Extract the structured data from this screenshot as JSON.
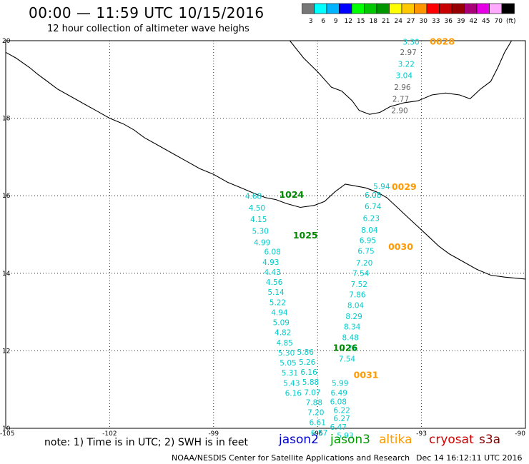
{
  "header": {
    "title": "00:00 — 11:59 UTC 10/15/2016",
    "subtitle": "12 hour collection of altimeter wave heighs"
  },
  "colorbar": {
    "colors": [
      "#777777",
      "#00ffff",
      "#00b4ff",
      "#0000ff",
      "#00ff00",
      "#00c800",
      "#009600",
      "#ffff00",
      "#ffc800",
      "#ff9600",
      "#ff0000",
      "#c80000",
      "#960000",
      "#aa0078",
      "#e600e6",
      "#ffaaff",
      "#000000"
    ],
    "labels": [
      "3",
      "6",
      "9",
      "12",
      "15",
      "18",
      "21",
      "24",
      "27",
      "30",
      "33",
      "36",
      "39",
      "42",
      "45",
      "70",
      "(ft)"
    ]
  },
  "axes": {
    "x_ticks": [
      "-105",
      "-102",
      "-99",
      "-96",
      "-93",
      "-90"
    ],
    "y_ticks": [
      "20",
      "18",
      "16",
      "14",
      "12",
      "10"
    ]
  },
  "passes": [
    {
      "time": "0028",
      "satellite": "altika",
      "color": "#ff9900",
      "points": [
        {
          "lat": 19.9,
          "lon": -93.3,
          "swh": "3.30",
          "color": "#00cccc"
        },
        {
          "lat": 19.63,
          "lon": -93.38,
          "swh": "2.97",
          "color": "#666666"
        },
        {
          "lat": 19.33,
          "lon": -93.44,
          "swh": "3.22",
          "color": "#00cccc"
        },
        {
          "lat": 19.03,
          "lon": -93.5,
          "swh": "3.04",
          "color": "#00cccc"
        },
        {
          "lat": 18.73,
          "lon": -93.55,
          "swh": "2.96",
          "color": "#666666"
        },
        {
          "lat": 18.43,
          "lon": -93.6,
          "swh": "2.77",
          "color": "#666666"
        },
        {
          "lat": 18.13,
          "lon": -93.63,
          "swh": "2.90",
          "color": "#666666"
        }
      ]
    },
    {
      "time": "0029",
      "satellite": "altika",
      "color": "#ff9900",
      "points": [
        {
          "lat": 16.17,
          "lon": -94.15,
          "swh": "5.94",
          "color": "#00cccc"
        },
        {
          "lat": 15.95,
          "lon": -94.4,
          "swh": "6.08",
          "color": "#00cccc"
        },
        {
          "lat": 15.65,
          "lon": -94.4,
          "swh": "6.74",
          "color": "#00cccc"
        },
        {
          "lat": 15.35,
          "lon": -94.45,
          "swh": "6.23",
          "color": "#00cccc"
        }
      ]
    },
    {
      "time": "0030",
      "satellite": "altika",
      "color": "#ff9900",
      "points": [
        {
          "lat": 15.05,
          "lon": -94.5,
          "swh": "8.04",
          "color": "#00cccc"
        },
        {
          "lat": 14.78,
          "lon": -94.55,
          "swh": "6.95",
          "color": "#00cccc"
        },
        {
          "lat": 14.5,
          "lon": -94.6,
          "swh": "6.75",
          "color": "#00cccc"
        },
        {
          "lat": 14.2,
          "lon": -94.65,
          "swh": "7.20",
          "color": "#00cccc"
        },
        {
          "lat": 13.93,
          "lon": -94.75,
          "swh": "7.54",
          "color": "#00cccc"
        },
        {
          "lat": 13.65,
          "lon": -94.8,
          "swh": "7.52",
          "color": "#00cccc"
        },
        {
          "lat": 13.38,
          "lon": -94.85,
          "swh": "7.86",
          "color": "#00cccc"
        },
        {
          "lat": 13.1,
          "lon": -94.9,
          "swh": "8.04",
          "color": "#00cccc"
        },
        {
          "lat": 12.82,
          "lon": -94.95,
          "swh": "8.29",
          "color": "#00cccc"
        },
        {
          "lat": 12.55,
          "lon": -95.0,
          "swh": "8.34",
          "color": "#00cccc"
        },
        {
          "lat": 12.27,
          "lon": -95.05,
          "swh": "8.48",
          "color": "#00cccc"
        },
        {
          "lat": 12.0,
          "lon": -95.1,
          "swh": "7.71",
          "color": "#00cccc"
        },
        {
          "lat": 11.72,
          "lon": -95.15,
          "swh": "7.54",
          "color": "#00cccc"
        }
      ]
    },
    {
      "time": "0031",
      "satellite": "altika",
      "color": "#ff9900",
      "points": [
        {
          "lat": 11.1,
          "lon": -95.35,
          "swh": "5.99",
          "color": "#00cccc"
        },
        {
          "lat": 10.85,
          "lon": -95.38,
          "swh": "6.49",
          "color": "#00cccc"
        },
        {
          "lat": 10.62,
          "lon": -95.4,
          "swh": "6.08",
          "color": "#00cccc"
        },
        {
          "lat": 10.4,
          "lon": -95.3,
          "swh": "6.22",
          "color": "#00cccc"
        },
        {
          "lat": 10.18,
          "lon": -95.3,
          "swh": "6.27",
          "color": "#00cccc"
        },
        {
          "lat": 9.96,
          "lon": -95.4,
          "swh": "6.47",
          "color": "#00cccc"
        },
        {
          "lat": 9.74,
          "lon": -95.2,
          "swh": "5.93",
          "color": "#00cccc"
        }
      ]
    },
    {
      "time": "1024",
      "satellite": "jason3",
      "color": "#008800",
      "points": [
        {
          "lat": 15.92,
          "lon": -97.85,
          "swh": "4.68",
          "color": "#00cccc"
        },
        {
          "lat": 15.62,
          "lon": -97.75,
          "swh": "4.50",
          "color": "#00cccc"
        },
        {
          "lat": 15.32,
          "lon": -97.7,
          "swh": "4.15",
          "color": "#00cccc"
        },
        {
          "lat": 15.02,
          "lon": -97.65,
          "swh": "5.30",
          "color": "#00cccc"
        },
        {
          "lat": 14.72,
          "lon": -97.6,
          "swh": "4.99",
          "color": "#00cccc"
        }
      ]
    },
    {
      "time": "1025",
      "satellite": "jason3",
      "color": "#008800",
      "points": [
        {
          "lat": 14.48,
          "lon": -97.3,
          "swh": "6.08",
          "color": "#00cccc"
        },
        {
          "lat": 14.22,
          "lon": -97.35,
          "swh": "4.93",
          "color": "#00cccc"
        },
        {
          "lat": 13.96,
          "lon": -97.3,
          "swh": "4.43",
          "color": "#00cccc"
        },
        {
          "lat": 13.7,
          "lon": -97.25,
          "swh": "4.56",
          "color": "#00cccc"
        },
        {
          "lat": 13.44,
          "lon": -97.2,
          "swh": "5.14",
          "color": "#00cccc"
        },
        {
          "lat": 13.18,
          "lon": -97.15,
          "swh": "5.22",
          "color": "#00cccc"
        },
        {
          "lat": 12.92,
          "lon": -97.1,
          "swh": "4.94",
          "color": "#00cccc"
        },
        {
          "lat": 12.66,
          "lon": -97.05,
          "swh": "5.09",
          "color": "#00cccc"
        },
        {
          "lat": 12.4,
          "lon": -97.0,
          "swh": "4.82",
          "color": "#00cccc"
        },
        {
          "lat": 12.14,
          "lon": -96.95,
          "swh": "4.85",
          "color": "#00cccc"
        },
        {
          "lat": 11.88,
          "lon": -96.9,
          "swh": "5.30",
          "color": "#00cccc"
        },
        {
          "lat": 11.62,
          "lon": -96.85,
          "swh": "5.05",
          "color": "#00cccc"
        },
        {
          "lat": 11.36,
          "lon": -96.8,
          "swh": "5.31",
          "color": "#00cccc"
        },
        {
          "lat": 11.1,
          "lon": -96.75,
          "swh": "5.43",
          "color": "#00cccc"
        },
        {
          "lat": 10.84,
          "lon": -96.7,
          "swh": "6.16",
          "color": "#00cccc"
        }
      ]
    },
    {
      "time": "1026",
      "satellite": "jason3",
      "color": "#008800",
      "points": [
        {
          "lat": 11.9,
          "lon": -96.35,
          "swh": "5.86",
          "color": "#00cccc"
        },
        {
          "lat": 11.64,
          "lon": -96.3,
          "swh": "5.26",
          "color": "#00cccc"
        },
        {
          "lat": 11.38,
          "lon": -96.25,
          "swh": "6.16",
          "color": "#00cccc"
        },
        {
          "lat": 11.12,
          "lon": -96.2,
          "swh": "5.88",
          "color": "#00cccc"
        },
        {
          "lat": 10.86,
          "lon": -96.15,
          "swh": "7.07",
          "color": "#00cccc"
        },
        {
          "lat": 10.6,
          "lon": -96.1,
          "swh": "7.88",
          "color": "#00cccc"
        },
        {
          "lat": 10.34,
          "lon": -96.05,
          "swh": "7.20",
          "color": "#00cccc"
        },
        {
          "lat": 10.08,
          "lon": -96.0,
          "swh": "6.61",
          "color": "#00cccc"
        },
        {
          "lat": 9.82,
          "lon": -95.95,
          "swh": "6.57",
          "color": "#00cccc"
        }
      ]
    }
  ],
  "legend": {
    "note": "note: 1) Time is in UTC; 2) SWH is in feet",
    "satellites": [
      {
        "name": "jason2",
        "color": "#0000cc"
      },
      {
        "name": "jason3",
        "color": "#009900"
      },
      {
        "name": "altika",
        "color": "#ff9900"
      },
      {
        "name": "cryosat",
        "color": "#cc0000"
      },
      {
        "name": "s3a",
        "color": "#880000"
      }
    ]
  },
  "credit": {
    "left": "NOAA/NESDIS Center for Satellite Applications and Research",
    "right": "Dec 14 16:12:11 UTC 2016"
  },
  "map_extent": {
    "lon": [
      -105,
      -90
    ],
    "lat": [
      10,
      20
    ]
  },
  "coastline": [
    [
      -105,
      19.7
    ],
    [
      -104.7,
      19.55
    ],
    [
      -104.3,
      19.3
    ],
    [
      -104.1,
      19.15
    ],
    [
      -103.8,
      18.95
    ],
    [
      -103.5,
      18.75
    ],
    [
      -103.2,
      18.6
    ],
    [
      -102.8,
      18.4
    ],
    [
      -102.4,
      18.2
    ],
    [
      -102.0,
      18.0
    ],
    [
      -101.6,
      17.85
    ],
    [
      -101.3,
      17.7
    ],
    [
      -101.0,
      17.5
    ],
    [
      -100.6,
      17.3
    ],
    [
      -100.2,
      17.1
    ],
    [
      -99.8,
      16.9
    ],
    [
      -99.4,
      16.7
    ],
    [
      -99.0,
      16.55
    ],
    [
      -98.6,
      16.35
    ],
    [
      -98.2,
      16.2
    ],
    [
      -97.8,
      16.05
    ],
    [
      -97.5,
      15.95
    ],
    [
      -97.2,
      15.9
    ],
    [
      -96.9,
      15.8
    ],
    [
      -96.5,
      15.7
    ],
    [
      -96.1,
      15.75
    ],
    [
      -95.8,
      15.85
    ],
    [
      -95.5,
      16.1
    ],
    [
      -95.2,
      16.3
    ],
    [
      -94.9,
      16.25
    ],
    [
      -94.6,
      16.2
    ],
    [
      -94.3,
      16.1
    ],
    [
      -94.0,
      15.95
    ],
    [
      -93.7,
      15.7
    ],
    [
      -93.4,
      15.45
    ],
    [
      -93.1,
      15.2
    ],
    [
      -92.8,
      14.95
    ],
    [
      -92.5,
      14.7
    ],
    [
      -92.2,
      14.5
    ],
    [
      -91.8,
      14.3
    ],
    [
      -91.4,
      14.1
    ],
    [
      -91.0,
      13.95
    ],
    [
      -90.6,
      13.9
    ],
    [
      -90.0,
      13.85
    ]
  ],
  "gulf_coast": [
    [
      -96.8,
      20.0
    ],
    [
      -96.4,
      19.55
    ],
    [
      -96.0,
      19.2
    ],
    [
      -95.6,
      18.8
    ],
    [
      -95.3,
      18.7
    ],
    [
      -95.0,
      18.45
    ],
    [
      -94.8,
      18.2
    ],
    [
      -94.5,
      18.1
    ],
    [
      -94.2,
      18.15
    ],
    [
      -93.9,
      18.3
    ],
    [
      -93.5,
      18.4
    ],
    [
      -93.1,
      18.45
    ],
    [
      -92.7,
      18.6
    ],
    [
      -92.3,
      18.65
    ],
    [
      -91.9,
      18.6
    ],
    [
      -91.6,
      18.5
    ],
    [
      -91.3,
      18.75
    ],
    [
      -91.0,
      18.95
    ],
    [
      -90.8,
      19.3
    ],
    [
      -90.6,
      19.7
    ],
    [
      -90.4,
      20.0
    ]
  ]
}
